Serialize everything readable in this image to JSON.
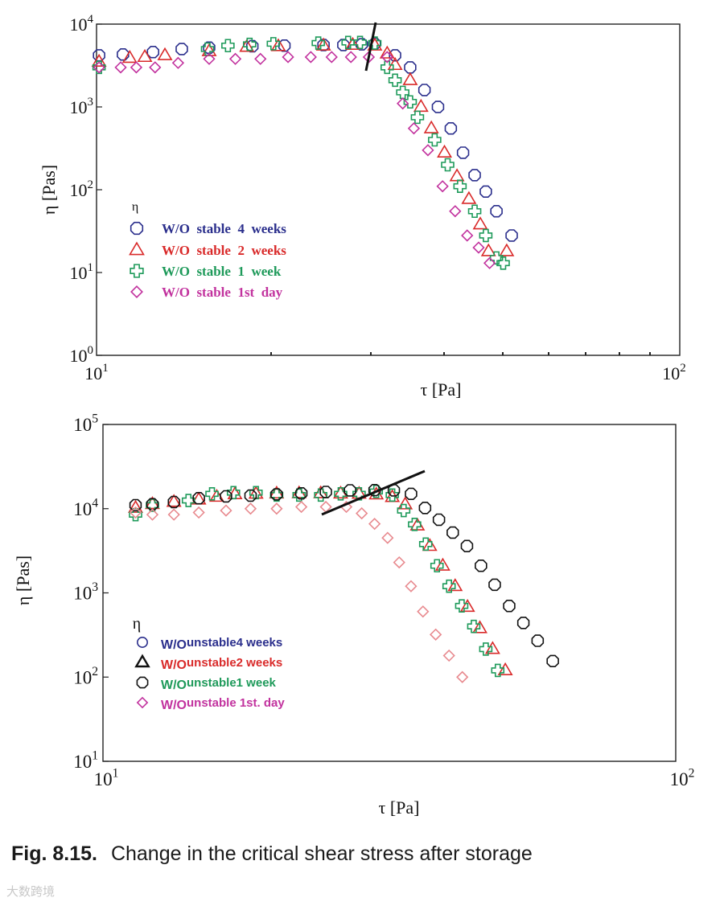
{
  "chart_data": [
    {
      "type": "scatter",
      "xscale": "log",
      "yscale": "log",
      "xlim": [
        10,
        100
      ],
      "ylim": [
        1,
        10000
      ],
      "xlabel": "τ [Pa]",
      "ylabel": "η [Pas]",
      "x_ticks": [
        {
          "base": "10",
          "exp": "1"
        },
        {
          "base": "10",
          "exp": "2"
        }
      ],
      "y_ticks": [
        {
          "base": "10",
          "exp": "0"
        },
        {
          "base": "10",
          "exp": "1"
        },
        {
          "base": "10",
          "exp": "2"
        },
        {
          "base": "10",
          "exp": "3"
        },
        {
          "base": "10",
          "exp": "4"
        }
      ],
      "legend_title": "η",
      "legend_placement": "left-middle",
      "series": [
        {
          "name": "W/O  stable  4  weeks",
          "marker": "octagon",
          "color": "#2a2e8c",
          "x": [
            10.1,
            11.1,
            12.5,
            14,
            15.6,
            18.5,
            21,
            24.5,
            26.5,
            28.5,
            30,
            32.5,
            34.5,
            36.5,
            38.5,
            40.5,
            42.5,
            44.5,
            46.5,
            48.5,
            51.5
          ],
          "y": [
            4200,
            4300,
            4600,
            5000,
            5200,
            5400,
            5500,
            5600,
            5600,
            5700,
            5800,
            4200,
            3000,
            1600,
            1000,
            550,
            280,
            150,
            95,
            55,
            28
          ]
        },
        {
          "name": "W/O  stable  2  weeks",
          "marker": "triangle",
          "color": "#d92a2a",
          "x": [
            10.1,
            11.4,
            12.1,
            13.1,
            15.6,
            18.1,
            20.5,
            24.5,
            27.5,
            30,
            31.5,
            32.5,
            34.5,
            36,
            37.5,
            39.5,
            41.5,
            43.5,
            45.5,
            47,
            50.5
          ],
          "y": [
            3500,
            3900,
            4000,
            4200,
            4700,
            5300,
            5400,
            5500,
            5600,
            5500,
            4400,
            3200,
            2100,
            1000,
            550,
            280,
            145,
            77,
            38,
            18,
            18
          ]
        },
        {
          "name": "W/O  stable  1  week",
          "marker": "plus",
          "color": "#1e9a5a",
          "x": [
            10.1,
            15.5,
            16.8,
            18.3,
            20.1,
            24,
            27,
            28.3,
            30,
            31.5,
            32.5,
            33.5,
            34.5,
            35.5,
            38,
            40,
            42,
            44.5,
            46.5,
            48.5,
            49.8
          ],
          "y": [
            3000,
            5000,
            5500,
            5700,
            5800,
            5900,
            6000,
            6000,
            5900,
            3000,
            2100,
            1500,
            1150,
            750,
            400,
            200,
            110,
            55,
            28,
            15,
            13
          ]
        },
        {
          "name": "W/O  stable  1st  day",
          "marker": "diamond",
          "color": "#c2329e",
          "x": [
            10.1,
            11,
            11.7,
            12.6,
            13.8,
            15.6,
            17.3,
            19.1,
            21.3,
            23.3,
            25.3,
            27.3,
            29.3,
            31.5,
            33.5,
            35,
            37,
            39.2,
            41.2,
            43.2,
            45.2,
            47.2
          ],
          "y": [
            3000,
            3000,
            3000,
            3000,
            3400,
            3800,
            3800,
            3800,
            4000,
            4000,
            4000,
            4000,
            4000,
            4000,
            1100,
            550,
            300,
            110,
            55,
            28,
            20,
            13
          ]
        }
      ],
      "annotations": [
        {
          "type": "critical-stress-line"
        }
      ]
    },
    {
      "type": "scatter",
      "xscale": "log",
      "yscale": "log",
      "xlim": [
        10,
        100
      ],
      "ylim": [
        10,
        100000
      ],
      "xlabel": "τ [Pa]",
      "ylabel": "η [Pas]",
      "x_ticks": [
        {
          "base": "10",
          "exp": "1"
        },
        {
          "base": "10",
          "exp": "2"
        }
      ],
      "y_ticks": [
        {
          "base": "10",
          "exp": "1"
        },
        {
          "base": "10",
          "exp": "2"
        },
        {
          "base": "10",
          "exp": "3"
        },
        {
          "base": "10",
          "exp": "4"
        },
        {
          "base": "10",
          "exp": "5"
        }
      ],
      "legend_title": "η",
      "legend_placement": "left-lower",
      "series": [
        {
          "name": "W/Ounstable4 weeks",
          "marker": "circle",
          "color": "#2a2e8c",
          "x": [],
          "y": []
        },
        {
          "name": "W/Ounstable2 weeks",
          "marker": "triangle",
          "color": "#d92a2a",
          "x": [
            11.4,
            12.2,
            13.3,
            14.7,
            15.8,
            17,
            18.5,
            20.1,
            22,
            24,
            26,
            28,
            30,
            32,
            33.7,
            35.4,
            37.2,
            39.2,
            41.2,
            43.3,
            45.5,
            47.9,
            50.4
          ],
          "y": [
            10200,
            11300,
            12000,
            12800,
            13800,
            14800,
            15000,
            15100,
            15200,
            15200,
            15100,
            15000,
            14700,
            13700,
            11200,
            6300,
            3600,
            2100,
            1200,
            680,
            380,
            215,
            120
          ]
        },
        {
          "name": "W/Ounstable1 week",
          "marker": "plus",
          "color": "#1e9a5a",
          "x": [
            11.4,
            12.2,
            14.1,
            15.5,
            16.9,
            18.5,
            20.1,
            22,
            24,
            26,
            28,
            30,
            32,
            33.5,
            35,
            36.6,
            38.3,
            40.2,
            42.3,
            44.4,
            46.6,
            48.9
          ],
          "y": [
            8500,
            11000,
            12500,
            15000,
            15500,
            15500,
            14500,
            14500,
            14500,
            15000,
            15000,
            16000,
            14500,
            9500,
            6500,
            3800,
            2100,
            1200,
            700,
            400,
            215,
            120
          ]
        },
        {
          "name": "W/Ounstable1 week",
          "marker": "octagon",
          "color": "#111111",
          "x": [
            11.4,
            12.2,
            13.3,
            14.7,
            16.4,
            18.1,
            20.1,
            22.2,
            24.5,
            27,
            29.8,
            32.2,
            34.5,
            36.5,
            38.6,
            40.8,
            43.2,
            45.7,
            48.3,
            51.2,
            54.2,
            57.4,
            61
          ],
          "y": [
            11000,
            11300,
            12000,
            13300,
            14000,
            14300,
            14800,
            15200,
            15800,
            16500,
            16600,
            16500,
            15000,
            10200,
            7400,
            5200,
            3600,
            2100,
            1250,
            700,
            440,
            270,
            155
          ]
        },
        {
          "name": "W/Ounstable 1st. day",
          "marker": "diamond",
          "color": "#e88a8f",
          "x": [
            11.4,
            12.2,
            13.3,
            14.7,
            16.4,
            18.1,
            20.1,
            22.2,
            24.5,
            26.6,
            28.3,
            29.8,
            31.4,
            32.9,
            34.5,
            36.2,
            38.1,
            40.2,
            42.4
          ],
          "y": [
            9000,
            8500,
            8500,
            9000,
            9500,
            10000,
            10000,
            10500,
            10500,
            10500,
            8800,
            6600,
            4500,
            2300,
            1200,
            600,
            320,
            180,
            100
          ]
        },
        {
          "name": "W/Ounstable 1st. day",
          "marker": "diamond",
          "color": "#c2329e",
          "x": [],
          "y": []
        }
      ],
      "legend_entries": [
        {
          "marker": "circle",
          "marker_color": "#2a2e8c",
          "prefix": "W/O",
          "prefix_color": "#2a2e8c",
          "text": "unstable4 weeks",
          "text_color": "#2a2e8c"
        },
        {
          "marker": "triangle-bold",
          "marker_color": "#111111",
          "prefix": "W/O",
          "prefix_color": "#d92a2a",
          "text": "unstable2 weeks",
          "text_color": "#d92a2a"
        },
        {
          "marker": "octagon",
          "marker_color": "#111111",
          "prefix": "W/O",
          "prefix_color": "#1e9a5a",
          "text": "unstable1 week",
          "text_color": "#1e9a5a"
        },
        {
          "marker": "diamond",
          "marker_color": "#c2329e",
          "prefix": "W/O",
          "prefix_color": "#c2329e",
          "text": "unstable 1st. day",
          "text_color": "#c2329e"
        }
      ],
      "annotations": [
        {
          "type": "critical-stress-line"
        }
      ]
    }
  ],
  "caption": {
    "label": "Fig. 8.15.",
    "text": "Change in the critical shear stress after storage"
  },
  "watermark": "大数跨境"
}
